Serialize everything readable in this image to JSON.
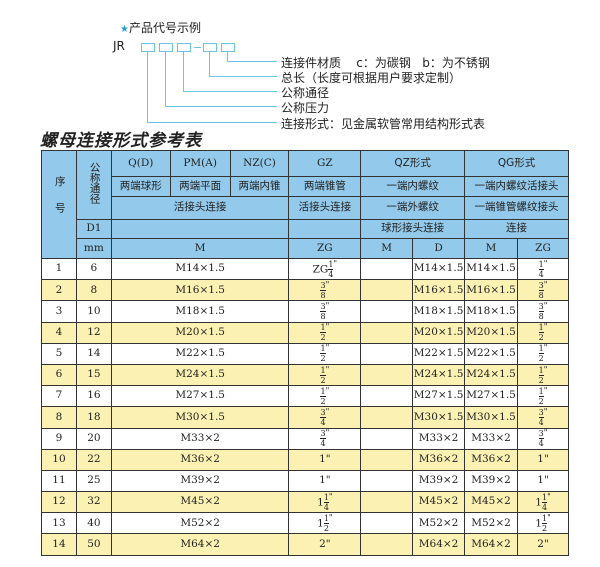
{
  "example": {
    "title": "产品代号示例",
    "star_icon": "★",
    "code": "JR",
    "labels": [
      "连接件材质    c：为碳钢   b：为不锈钢",
      "总长（长度可根据用户要求定制）",
      "公称通径",
      "公称压力",
      "连接形式：见金属软管常用结构形式表"
    ]
  },
  "table_title": "螺母连接形式参考表",
  "colors": {
    "header": "#93c9ea",
    "alt_row": "#fbf1b3",
    "line": "#6cc4e0"
  },
  "header": {
    "seq": "序号",
    "dn": "公称通径",
    "r1": [
      "Q(D)",
      "PM(A)",
      "NZ(C)",
      "GZ",
      "QZ形式",
      "QG形式"
    ],
    "r2": [
      "两端球形",
      "两端平面",
      "两端内锥",
      "两端锥管",
      "一端内螺纹",
      "一端内螺纹活接头"
    ],
    "r3": [
      "活接头连接",
      "活接头连接",
      "一端外螺纹",
      "一端锥管螺纹接头"
    ],
    "r4": [
      "D1",
      "",
      "",
      "球形接头连接",
      "连接"
    ],
    "r5": [
      "mm",
      "M",
      "ZG",
      "M",
      "D",
      "M",
      "ZG"
    ]
  },
  "rows": [
    {
      "no": "1",
      "d1": "6",
      "m": "M14×1.5",
      "zg": {
        "pre": "ZG",
        "num": "1",
        "den": "4",
        "u": "\""
      },
      "qzm": "",
      "qzd": "M14×1.5",
      "qgm": "M14×1.5",
      "qgzg": {
        "pre": "",
        "num": "1",
        "den": "4",
        "u": "\""
      }
    },
    {
      "no": "2",
      "d1": "8",
      "m": "M16×1.5",
      "zg": {
        "pre": "",
        "num": "3",
        "den": "8",
        "u": "\""
      },
      "qzm": "",
      "qzd": "M16×1.5",
      "qgm": "M16×1.5",
      "qgzg": {
        "pre": "",
        "num": "3",
        "den": "8",
        "u": "\""
      }
    },
    {
      "no": "3",
      "d1": "10",
      "m": "M18×1.5",
      "zg": {
        "pre": "",
        "num": "3",
        "den": "8",
        "u": "\""
      },
      "qzm": "",
      "qzd": "M18×1.5",
      "qgm": "M18×1.5",
      "qgzg": {
        "pre": "",
        "num": "3",
        "den": "8",
        "u": "\""
      }
    },
    {
      "no": "4",
      "d1": "12",
      "m": "M20×1.5",
      "zg": {
        "pre": "",
        "num": "1",
        "den": "2",
        "u": "\""
      },
      "qzm": "",
      "qzd": "M20×1.5",
      "qgm": "M20×1.5",
      "qgzg": {
        "pre": "",
        "num": "1",
        "den": "2",
        "u": "\""
      }
    },
    {
      "no": "5",
      "d1": "14",
      "m": "M22×1.5",
      "zg": {
        "pre": "",
        "num": "1",
        "den": "2",
        "u": "\""
      },
      "qzm": "",
      "qzd": "M22×1.5",
      "qgm": "M22×1.5",
      "qgzg": {
        "pre": "",
        "num": "1",
        "den": "2",
        "u": "\""
      }
    },
    {
      "no": "6",
      "d1": "15",
      "m": "M24×1.5",
      "zg": {
        "pre": "",
        "num": "1",
        "den": "2",
        "u": "\""
      },
      "qzm": "",
      "qzd": "M24×1.5",
      "qgm": "M24×1.5",
      "qgzg": {
        "pre": "",
        "num": "1",
        "den": "2",
        "u": "\""
      }
    },
    {
      "no": "7",
      "d1": "16",
      "m": "M27×1.5",
      "zg": {
        "pre": "",
        "num": "1",
        "den": "2",
        "u": "\""
      },
      "qzm": "",
      "qzd": "M27×1.5",
      "qgm": "M27×1.5",
      "qgzg": {
        "pre": "",
        "num": "1",
        "den": "2",
        "u": "\""
      }
    },
    {
      "no": "8",
      "d1": "18",
      "m": "M30×1.5",
      "zg": {
        "pre": "",
        "num": "3",
        "den": "4",
        "u": "\""
      },
      "qzm": "",
      "qzd": "M30×1.5",
      "qgm": "M30×1.5",
      "qgzg": {
        "pre": "",
        "num": "3",
        "den": "4",
        "u": "\""
      }
    },
    {
      "no": "9",
      "d1": "20",
      "m": "M33×2",
      "zg": {
        "pre": "",
        "num": "3",
        "den": "4",
        "u": "\""
      },
      "qzm": "",
      "qzd": "M33×2",
      "qgm": "M33×2",
      "qgzg": {
        "pre": "",
        "num": "3",
        "den": "4",
        "u": "\""
      }
    },
    {
      "no": "10",
      "d1": "22",
      "m": "M36×2",
      "zg": {
        "pre": "1\"",
        "num": "",
        "den": "",
        "u": ""
      },
      "qzm": "",
      "qzd": "M36×2",
      "qgm": "M36×2",
      "qgzg": {
        "pre": "1\"",
        "num": "",
        "den": "",
        "u": ""
      }
    },
    {
      "no": "11",
      "d1": "25",
      "m": "M39×2",
      "zg": {
        "pre": "1\"",
        "num": "",
        "den": "",
        "u": ""
      },
      "qzm": "",
      "qzd": "M39×2",
      "qgm": "M39×2",
      "qgzg": {
        "pre": "1\"",
        "num": "",
        "den": "",
        "u": ""
      }
    },
    {
      "no": "12",
      "d1": "32",
      "m": "M45×2",
      "zg": {
        "pre": "1",
        "num": "1",
        "den": "4",
        "u": "\""
      },
      "qzm": "",
      "qzd": "M45×2",
      "qgm": "M45×2",
      "qgzg": {
        "pre": "1",
        "num": "1",
        "den": "4",
        "u": "\""
      }
    },
    {
      "no": "13",
      "d1": "40",
      "m": "M52×2",
      "zg": {
        "pre": "1",
        "num": "1",
        "den": "2",
        "u": "\""
      },
      "qzm": "",
      "qzd": "M52×2",
      "qgm": "M52×2",
      "qgzg": {
        "pre": "1",
        "num": "1",
        "den": "2",
        "u": "\""
      }
    },
    {
      "no": "14",
      "d1": "50",
      "m": "M64×2",
      "zg": {
        "pre": "2\"",
        "num": "",
        "den": "",
        "u": ""
      },
      "qzm": "",
      "qzd": "M64×2",
      "qgm": "M64×2",
      "qgzg": {
        "pre": "2\"",
        "num": "",
        "den": "",
        "u": ""
      }
    }
  ]
}
